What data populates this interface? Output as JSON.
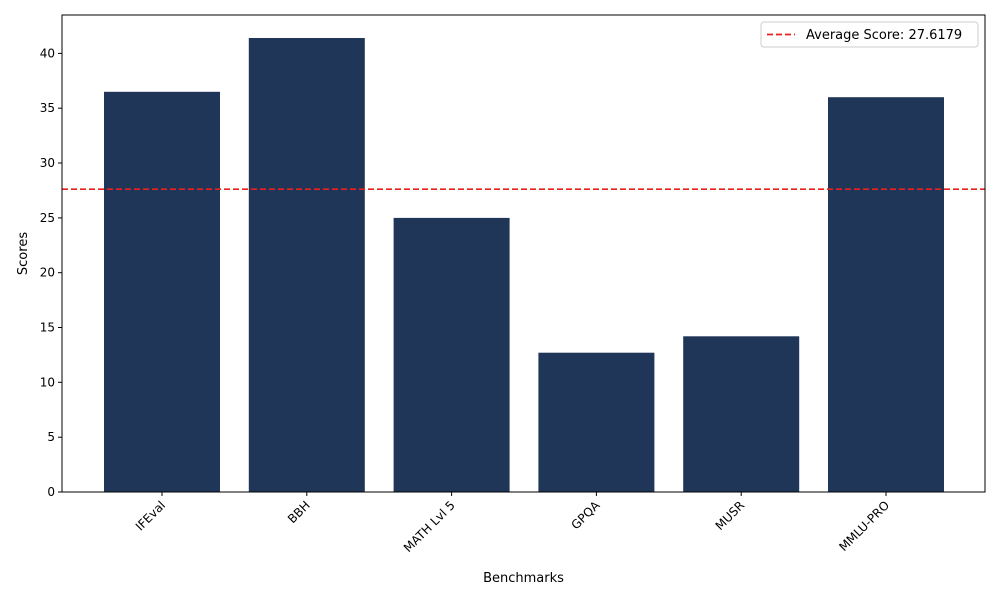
{
  "chart_data": {
    "type": "bar",
    "categories": [
      "IFEval",
      "BBH",
      "MATH Lvl 5",
      "GPQA",
      "MUSR",
      "MMLU-PRO"
    ],
    "values": [
      36.5,
      41.4,
      25.0,
      12.7,
      14.2,
      36.0
    ],
    "xlabel": "Benchmarks",
    "ylabel": "Scores",
    "ylim": [
      0,
      43.5
    ],
    "yticks": [
      0,
      5,
      10,
      15,
      20,
      25,
      30,
      35,
      40
    ],
    "bar_color": "#1f3658",
    "reference_line": {
      "value": 27.6179,
      "label": "Average Score: 27.6179",
      "color": "#e8201e",
      "style": "dashed"
    },
    "legend_position": "top-right",
    "grid": false
  }
}
